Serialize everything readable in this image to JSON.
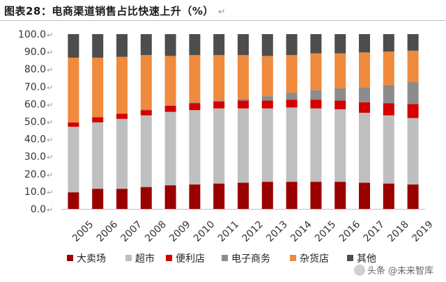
{
  "header": {
    "title": "图表28：电商渠道销售占比快速上升（%）",
    "return_mark": "↵"
  },
  "watermark": {
    "text": "头条 @未来智库"
  },
  "colors": {
    "大卖场": "#9b0000",
    "超市": "#bfbfbf",
    "便利店": "#d40000",
    "电子商务": "#8c8c8c",
    "杂货店": "#f08a3c",
    "其他": "#4d4d4d"
  },
  "chart_data": {
    "type": "bar",
    "stacked": true,
    "categories": [
      "2005",
      "2006",
      "2007",
      "2008",
      "2009",
      "2010",
      "2011",
      "2012",
      "2013",
      "2014",
      "2015",
      "2016",
      "2017",
      "2018",
      "2019"
    ],
    "ylim": [
      0,
      100
    ],
    "yticks": [
      "0.0",
      "10.0",
      "20.0",
      "30.0",
      "40.0",
      "50.0",
      "60.0",
      "70.0",
      "80.0",
      "90.0",
      "100.0"
    ],
    "ytick_suffix": "↵",
    "grid": false,
    "legend_position": "bottom",
    "series": [
      {
        "name": "大卖场",
        "values": [
          9.5,
          11.5,
          11.5,
          12.5,
          13.5,
          14.0,
          14.5,
          15.0,
          15.5,
          15.5,
          15.5,
          15.5,
          15.0,
          14.5,
          14.0
        ]
      },
      {
        "name": "超市",
        "values": [
          37.5,
          38.0,
          40.0,
          41.0,
          42.0,
          42.5,
          43.0,
          42.5,
          42.0,
          42.5,
          42.0,
          41.5,
          40.0,
          39.0,
          38.0
        ]
      },
      {
        "name": "便利店",
        "values": [
          2.5,
          3.0,
          3.0,
          3.0,
          3.5,
          4.0,
          4.0,
          4.5,
          4.5,
          4.5,
          5.0,
          5.0,
          6.0,
          7.0,
          8.0
        ]
      },
      {
        "name": "电子商务",
        "values": [
          0.0,
          0.0,
          0.0,
          0.5,
          0.5,
          0.5,
          0.5,
          1.0,
          2.5,
          4.0,
          5.5,
          7.0,
          8.5,
          10.5,
          12.5
        ]
      },
      {
        "name": "杂货店",
        "values": [
          37.0,
          34.0,
          32.5,
          31.0,
          28.0,
          27.0,
          26.0,
          25.0,
          23.0,
          21.5,
          21.0,
          20.0,
          20.0,
          19.0,
          18.0
        ]
      },
      {
        "name": "其他",
        "values": [
          13.5,
          13.5,
          13.0,
          12.0,
          12.5,
          12.0,
          12.0,
          12.0,
          12.5,
          12.0,
          11.0,
          11.0,
          10.5,
          10.0,
          9.5
        ]
      }
    ],
    "legend": [
      "大卖场",
      "超市",
      "便利店",
      "电子商务",
      "杂货店",
      "其他"
    ]
  }
}
